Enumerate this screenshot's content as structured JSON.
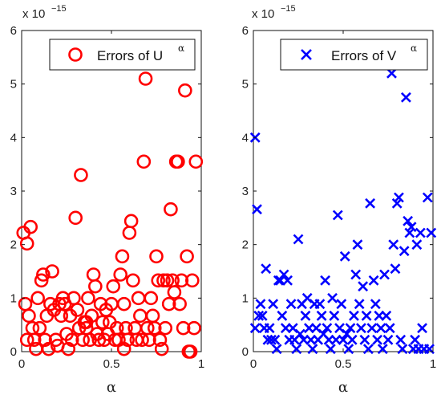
{
  "chart_data": [
    {
      "type": "scatter",
      "xlabel": "α",
      "ylabel": "",
      "xlim": [
        0,
        1
      ],
      "ylim": [
        0,
        6
      ],
      "x_ticks": [
        "0",
        "0.5",
        "1"
      ],
      "y_ticks": [
        "0",
        "1",
        "2",
        "3",
        "4",
        "5",
        "6"
      ],
      "scale_label": "x 10",
      "scale_exponent": "−15",
      "legend_placement": "top-right",
      "marker": "circle",
      "color": "#ff0000",
      "series": [
        {
          "legend_text": "Errors of U",
          "legend_superscript": "α",
          "points": [
            [
              0.01,
              2.22
            ],
            [
              0.03,
              2.02
            ],
            [
              0.05,
              2.33
            ],
            [
              0.02,
              0.89
            ],
            [
              0.04,
              0.67
            ],
            [
              0.06,
              0.44
            ],
            [
              0.07,
              0.22
            ],
            [
              0.03,
              0.22
            ],
            [
              0.09,
              1.0
            ],
            [
              0.11,
              1.33
            ],
            [
              0.12,
              1.44
            ],
            [
              0.1,
              0.44
            ],
            [
              0.13,
              0.22
            ],
            [
              0.14,
              0.67
            ],
            [
              0.16,
              0.89
            ],
            [
              0.17,
              1.5
            ],
            [
              0.18,
              0.78
            ],
            [
              0.19,
              0.22
            ],
            [
              0.2,
              0.11
            ],
            [
              0.21,
              0.89
            ],
            [
              0.22,
              0.67
            ],
            [
              0.23,
              1.0
            ],
            [
              0.24,
              0.89
            ],
            [
              0.25,
              0.33
            ],
            [
              0.26,
              0.05
            ],
            [
              0.28,
              0.22
            ],
            [
              0.29,
              1.0
            ],
            [
              0.3,
              2.5
            ],
            [
              0.31,
              0.78
            ],
            [
              0.32,
              0.44
            ],
            [
              0.33,
              3.3
            ],
            [
              0.34,
              0.22
            ],
            [
              0.35,
              0.55
            ],
            [
              0.36,
              0.44
            ],
            [
              0.38,
              0.22
            ],
            [
              0.39,
              0.67
            ],
            [
              0.4,
              1.44
            ],
            [
              0.41,
              1.22
            ],
            [
              0.42,
              0.33
            ],
            [
              0.43,
              0.22
            ],
            [
              0.44,
              0.89
            ],
            [
              0.45,
              0.55
            ],
            [
              0.46,
              0.22
            ],
            [
              0.47,
              0.78
            ],
            [
              0.48,
              0.33
            ],
            [
              0.49,
              0.55
            ],
            [
              0.5,
              0.89
            ],
            [
              0.51,
              1.22
            ],
            [
              0.52,
              0.22
            ],
            [
              0.53,
              0.44
            ],
            [
              0.54,
              0.22
            ],
            [
              0.55,
              1.44
            ],
            [
              0.56,
              1.78
            ],
            [
              0.57,
              0.89
            ],
            [
              0.58,
              0.44
            ],
            [
              0.59,
              0.22
            ],
            [
              0.6,
              2.22
            ],
            [
              0.61,
              2.44
            ],
            [
              0.62,
              1.33
            ],
            [
              0.63,
              0.44
            ],
            [
              0.64,
              0.22
            ],
            [
              0.65,
              1.0
            ],
            [
              0.66,
              0.67
            ],
            [
              0.67,
              0.22
            ],
            [
              0.68,
              3.55
            ],
            [
              0.69,
              5.1
            ],
            [
              0.7,
              0.44
            ],
            [
              0.71,
              0.22
            ],
            [
              0.72,
              1.0
            ],
            [
              0.73,
              0.67
            ],
            [
              0.74,
              0.44
            ],
            [
              0.75,
              1.78
            ],
            [
              0.76,
              1.33
            ],
            [
              0.77,
              0.22
            ],
            [
              0.78,
              0.05
            ],
            [
              0.79,
              1.33
            ],
            [
              0.8,
              0.44
            ],
            [
              0.81,
              1.33
            ],
            [
              0.82,
              0.89
            ],
            [
              0.83,
              2.66
            ],
            [
              0.84,
              1.33
            ],
            [
              0.85,
              1.11
            ],
            [
              0.86,
              3.55
            ],
            [
              0.87,
              3.55
            ],
            [
              0.88,
              0.89
            ],
            [
              0.89,
              1.33
            ],
            [
              0.9,
              0.44
            ],
            [
              0.91,
              4.88
            ],
            [
              0.92,
              1.78
            ],
            [
              0.93,
              0.0
            ],
            [
              0.94,
              0.0
            ],
            [
              0.95,
              1.33
            ],
            [
              0.96,
              0.44
            ],
            [
              0.97,
              3.55
            ],
            [
              0.15,
              0.05
            ],
            [
              0.27,
              0.67
            ],
            [
              0.37,
              1.0
            ],
            [
              0.08,
              0.05
            ],
            [
              0.57,
              0.05
            ],
            [
              0.36,
              0.55
            ]
          ]
        }
      ]
    },
    {
      "type": "scatter",
      "xlabel": "α",
      "ylabel": "",
      "xlim": [
        0,
        1
      ],
      "ylim": [
        0,
        6
      ],
      "x_ticks": [
        "0",
        "0.5",
        "1"
      ],
      "y_ticks": [
        "0",
        "1",
        "2",
        "3",
        "4",
        "5",
        "6"
      ],
      "scale_label": "x 10",
      "scale_exponent": "−15",
      "legend_placement": "top-right",
      "marker": "x",
      "color": "#0000ff",
      "series": [
        {
          "legend_text": "Errors of V",
          "legend_superscript": "α",
          "points": [
            [
              0.01,
              4.0
            ],
            [
              0.02,
              2.66
            ],
            [
              0.01,
              0.44
            ],
            [
              0.03,
              0.67
            ],
            [
              0.04,
              0.89
            ],
            [
              0.05,
              0.67
            ],
            [
              0.06,
              0.44
            ],
            [
              0.07,
              1.55
            ],
            [
              0.08,
              0.22
            ],
            [
              0.09,
              0.44
            ],
            [
              0.1,
              0.22
            ],
            [
              0.11,
              0.89
            ],
            [
              0.12,
              0.22
            ],
            [
              0.13,
              0.05
            ],
            [
              0.14,
              1.33
            ],
            [
              0.15,
              1.33
            ],
            [
              0.16,
              0.67
            ],
            [
              0.17,
              1.44
            ],
            [
              0.18,
              0.44
            ],
            [
              0.19,
              1.33
            ],
            [
              0.2,
              0.22
            ],
            [
              0.21,
              0.89
            ],
            [
              0.22,
              0.44
            ],
            [
              0.23,
              0.22
            ],
            [
              0.24,
              0.05
            ],
            [
              0.25,
              2.1
            ],
            [
              0.26,
              0.33
            ],
            [
              0.27,
              0.89
            ],
            [
              0.28,
              0.22
            ],
            [
              0.29,
              0.67
            ],
            [
              0.3,
              1.0
            ],
            [
              0.31,
              0.44
            ],
            [
              0.32,
              0.22
            ],
            [
              0.33,
              0.05
            ],
            [
              0.34,
              0.89
            ],
            [
              0.35,
              0.44
            ],
            [
              0.36,
              0.22
            ],
            [
              0.37,
              0.89
            ],
            [
              0.38,
              0.67
            ],
            [
              0.39,
              0.33
            ],
            [
              0.4,
              1.33
            ],
            [
              0.41,
              0.44
            ],
            [
              0.42,
              0.22
            ],
            [
              0.43,
              0.05
            ],
            [
              0.44,
              1.0
            ],
            [
              0.45,
              0.67
            ],
            [
              0.46,
              0.22
            ],
            [
              0.47,
              2.55
            ],
            [
              0.48,
              0.44
            ],
            [
              0.49,
              0.89
            ],
            [
              0.5,
              0.22
            ],
            [
              0.51,
              1.78
            ],
            [
              0.52,
              0.33
            ],
            [
              0.53,
              0.05
            ],
            [
              0.54,
              0.44
            ],
            [
              0.55,
              0.22
            ],
            [
              0.56,
              0.67
            ],
            [
              0.57,
              1.44
            ],
            [
              0.58,
              2.0
            ],
            [
              0.59,
              0.89
            ],
            [
              0.6,
              0.44
            ],
            [
              0.61,
              1.22
            ],
            [
              0.62,
              0.22
            ],
            [
              0.63,
              0.67
            ],
            [
              0.64,
              0.05
            ],
            [
              0.65,
              2.77
            ],
            [
              0.66,
              0.44
            ],
            [
              0.67,
              1.33
            ],
            [
              0.68,
              0.89
            ],
            [
              0.69,
              0.22
            ],
            [
              0.7,
              0.67
            ],
            [
              0.71,
              0.44
            ],
            [
              0.72,
              0.05
            ],
            [
              0.73,
              1.44
            ],
            [
              0.74,
              0.67
            ],
            [
              0.75,
              0.22
            ],
            [
              0.76,
              0.44
            ],
            [
              0.77,
              5.2
            ],
            [
              0.78,
              2.0
            ],
            [
              0.79,
              1.55
            ],
            [
              0.8,
              2.77
            ],
            [
              0.81,
              2.88
            ],
            [
              0.82,
              0.22
            ],
            [
              0.83,
              0.05
            ],
            [
              0.84,
              1.88
            ],
            [
              0.85,
              4.75
            ],
            [
              0.86,
              2.44
            ],
            [
              0.87,
              2.22
            ],
            [
              0.88,
              2.33
            ],
            [
              0.89,
              0.05
            ],
            [
              0.9,
              0.22
            ],
            [
              0.91,
              2.0
            ],
            [
              0.92,
              0.05
            ],
            [
              0.93,
              2.22
            ],
            [
              0.94,
              0.44
            ],
            [
              0.95,
              0.05
            ],
            [
              0.97,
              2.88
            ],
            [
              0.99,
              2.22
            ],
            [
              0.98,
              0.05
            ]
          ]
        }
      ]
    }
  ]
}
